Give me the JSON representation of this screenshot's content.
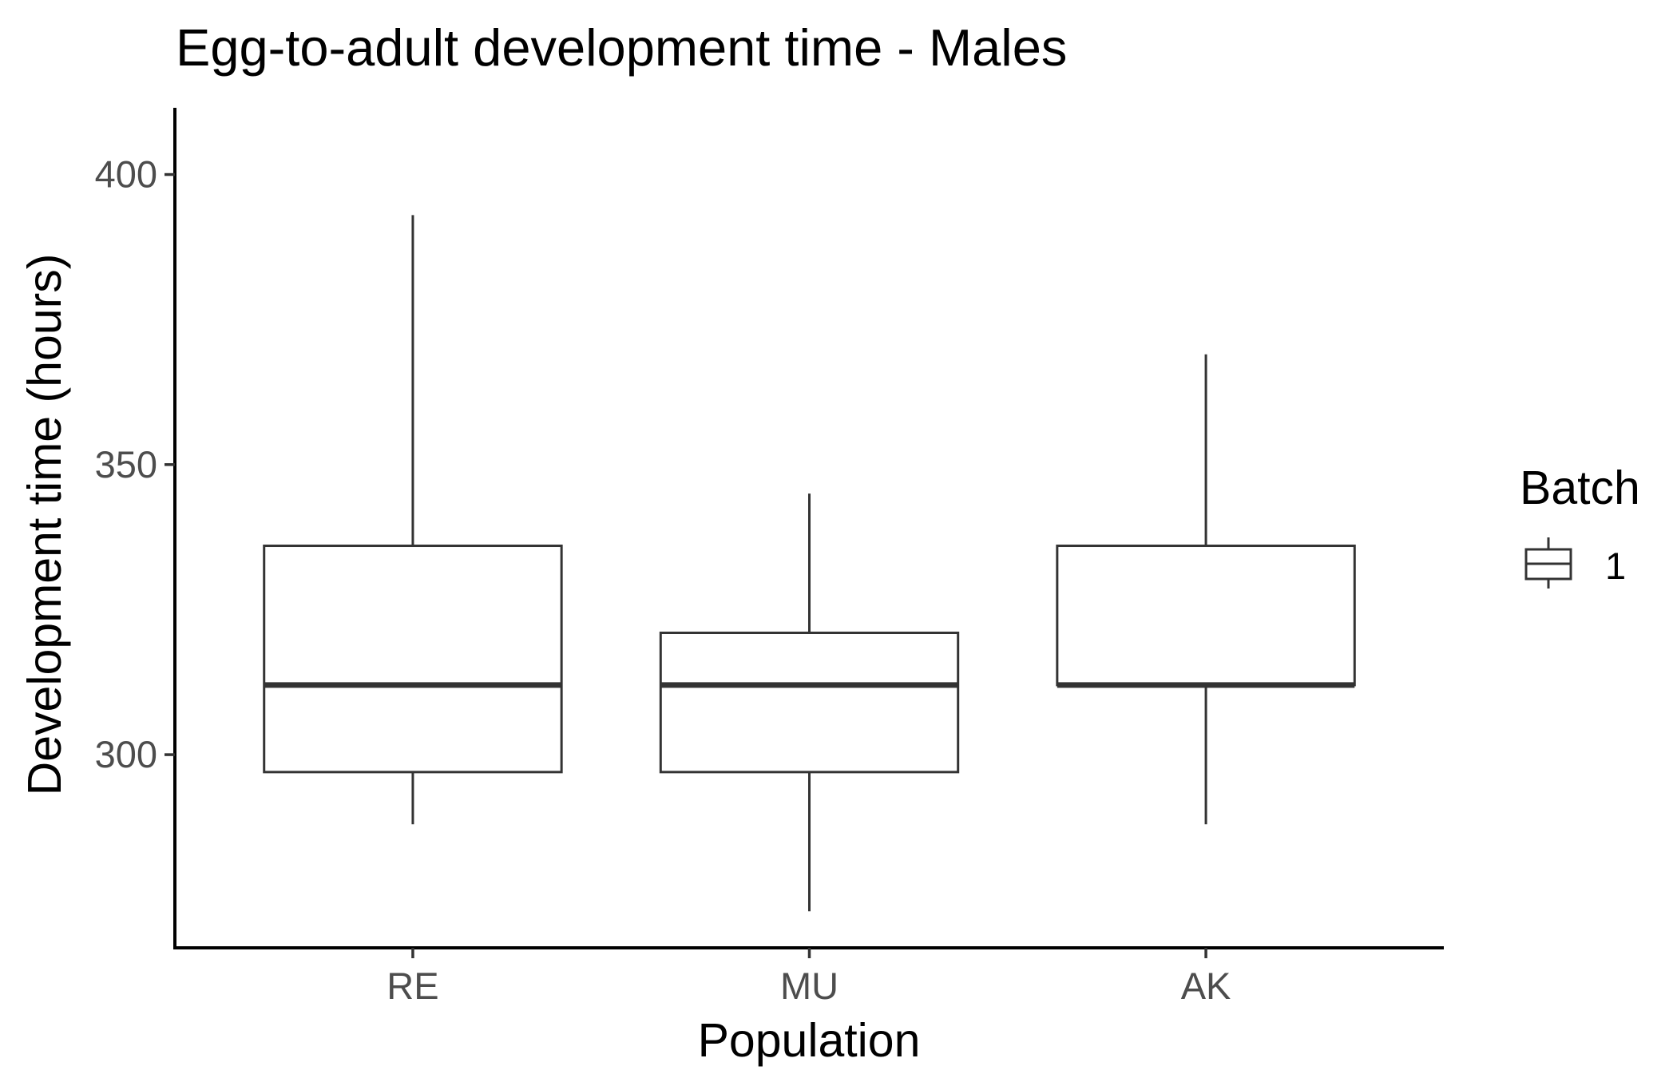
{
  "chart_data": {
    "type": "boxplot",
    "title": "Egg-to-adult development time - Males",
    "xlabel": "Population",
    "ylabel": "Development time (hours)",
    "categories": [
      "RE",
      "MU",
      "AK"
    ],
    "ylim": [
      266.7,
      411.5
    ],
    "yticks": [
      300,
      350,
      400
    ],
    "grid": false,
    "boxes": [
      {
        "category": "RE",
        "whisker_low": 288,
        "q1": 297,
        "median": 312,
        "q3": 336,
        "whisker_high": 393
      },
      {
        "category": "MU",
        "whisker_low": 273,
        "q1": 297,
        "median": 312,
        "q3": 321,
        "whisker_high": 345
      },
      {
        "category": "AK",
        "whisker_low": 288,
        "q1": 312,
        "median": 312,
        "q3": 336,
        "whisker_high": 369
      }
    ],
    "legend": {
      "title": "Batch",
      "entries": [
        "1"
      ],
      "placement": "right"
    },
    "colors": {
      "box_stroke": "#333333",
      "box_fill": "#ffffff",
      "axis": "#000000",
      "tick_label": "#4d4d4d"
    }
  }
}
